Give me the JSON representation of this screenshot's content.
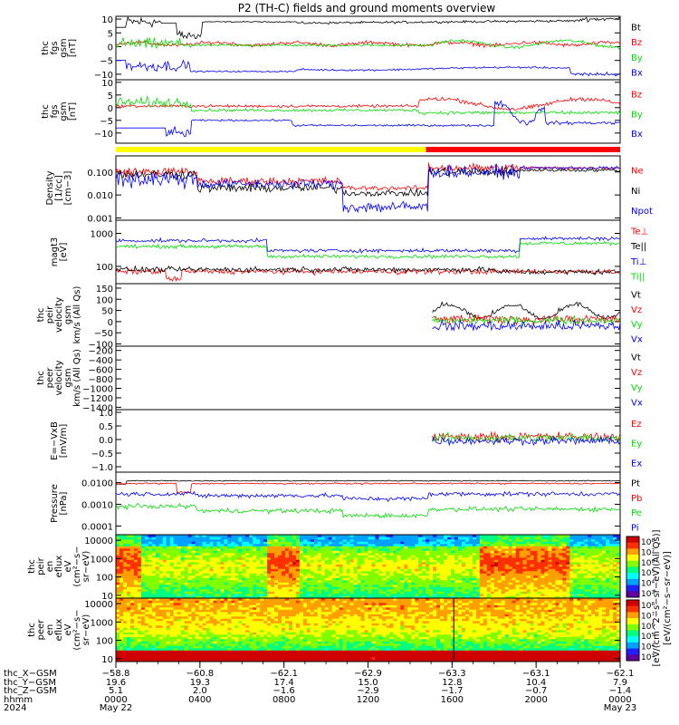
{
  "title": "P2 (TH-C) fields and ground moments overview",
  "colors": {
    "black": "#000000",
    "red": "#ff0000",
    "green": "#00dd00",
    "blue": "#0000ff",
    "yellow": "#ffff00"
  },
  "chart_data": [
    {
      "type": "line",
      "id": "fgs_gsm",
      "ylabel": [
        "thc",
        "fgs",
        "gsm",
        "[nT]"
      ],
      "ylim": [
        -12,
        11
      ],
      "yticks": [
        {
          "v": 10,
          "l": "10"
        },
        {
          "v": 5,
          "l": "5"
        },
        {
          "v": 0,
          "l": "0"
        },
        {
          "v": -5,
          "l": "−5"
        },
        {
          "v": -10,
          "l": "−10"
        }
      ],
      "series": [
        {
          "name": "Bt",
          "color": "black"
        },
        {
          "name": "Bz",
          "color": "red"
        },
        {
          "name": "By",
          "color": "green"
        },
        {
          "name": "Bx",
          "color": "blue"
        }
      ]
    },
    {
      "type": "line",
      "id": "fgs_dsl",
      "ylabel": [
        "thc",
        "fgs",
        "gsm",
        "[nT]"
      ],
      "ylim": [
        -14,
        11
      ],
      "yticks": [
        {
          "v": 10,
          "l": "10"
        },
        {
          "v": 5,
          "l": "5"
        },
        {
          "v": 0,
          "l": "0"
        },
        {
          "v": -5,
          "l": "−5"
        },
        {
          "v": -10,
          "l": "−10"
        }
      ],
      "series": [
        {
          "name": "Bz",
          "color": "red"
        },
        {
          "name": "By",
          "color": "green"
        },
        {
          "name": "Bx",
          "color": "blue"
        }
      ]
    },
    {
      "type": "bar",
      "id": "region_bar",
      "segments": [
        {
          "from": 0,
          "to": 0.615,
          "color": "yellow"
        },
        {
          "from": 0.615,
          "to": 1,
          "color": "red"
        }
      ]
    },
    {
      "type": "line",
      "id": "density",
      "scale": "log",
      "ylabel": [
        "Density",
        "[1/cc]",
        "[cm−3]"
      ],
      "ylim": [
        0.0008,
        0.5
      ],
      "yticks": [
        {
          "v": 0.1,
          "l": "0.100"
        },
        {
          "v": 0.01,
          "l": "0.010"
        },
        {
          "v": 0.001,
          "l": "0.001"
        }
      ],
      "series": [
        {
          "name": "Ne",
          "color": "red"
        },
        {
          "name": "Ni",
          "color": "black"
        },
        {
          "name": "Npot",
          "color": "blue"
        }
      ]
    },
    {
      "type": "line",
      "id": "temp",
      "scale": "log",
      "ylabel": [
        "magt3",
        "[eV]"
      ],
      "ylim": [
        30,
        2500
      ],
      "yticks": [
        {
          "v": 1000,
          "l": "1000"
        },
        {
          "v": 100,
          "l": "100"
        }
      ],
      "series": [
        {
          "name": "Te⊥",
          "color": "red"
        },
        {
          "name": "Te||",
          "color": "black"
        },
        {
          "name": "Ti⊥",
          "color": "blue"
        },
        {
          "name": "Ti||",
          "color": "green"
        }
      ]
    },
    {
      "type": "line",
      "id": "peir_vel",
      "ylabel": [
        "thc",
        "peir",
        "velocity",
        "gsm",
        "km/s (All Qs)"
      ],
      "ylim": [
        -110,
        170
      ],
      "yticks": [
        {
          "v": 150,
          "l": "150"
        },
        {
          "v": 100,
          "l": "100"
        },
        {
          "v": 50,
          "l": "50"
        },
        {
          "v": 0,
          "l": "0"
        },
        {
          "v": -50,
          "l": "−50"
        },
        {
          "v": -100,
          "l": "−100"
        }
      ],
      "series": [
        {
          "name": "Vt",
          "color": "black"
        },
        {
          "name": "Vz",
          "color": "red"
        },
        {
          "name": "Vy",
          "color": "green"
        },
        {
          "name": "Vx",
          "color": "blue"
        }
      ]
    },
    {
      "type": "line",
      "id": "peer_vel",
      "ylabel": [
        "thc",
        "peer",
        "velocity",
        "gsm",
        "km/s (All Qs)"
      ],
      "ylim": [
        -1450,
        -110
      ],
      "yticks": [
        {
          "v": -200,
          "l": "−200"
        },
        {
          "v": -400,
          "l": "−400"
        },
        {
          "v": -600,
          "l": "−600"
        },
        {
          "v": -800,
          "l": "−800"
        },
        {
          "v": -1000,
          "l": "−1000"
        },
        {
          "v": -1200,
          "l": "−1200"
        },
        {
          "v": -1400,
          "l": "−1400"
        }
      ],
      "series": [
        {
          "name": "Vt",
          "color": "black"
        },
        {
          "name": "Vz",
          "color": "red"
        },
        {
          "name": "Vy",
          "color": "green"
        },
        {
          "name": "Vx",
          "color": "blue"
        }
      ]
    },
    {
      "type": "line",
      "id": "efield",
      "ylabel": [
        "E=−VxB",
        "[mV/m]"
      ],
      "ylim": [
        -1.2,
        1.1
      ],
      "yticks": [
        {
          "v": 1.0,
          "l": "1.0"
        },
        {
          "v": 0.5,
          "l": "0.5"
        },
        {
          "v": 0.0,
          "l": "0.0"
        },
        {
          "v": -0.5,
          "l": "−0.5"
        },
        {
          "v": -1.0,
          "l": "−1.0"
        }
      ],
      "series": [
        {
          "name": "Ez",
          "color": "red"
        },
        {
          "name": "Ey",
          "color": "green"
        },
        {
          "name": "Ex",
          "color": "blue"
        }
      ]
    },
    {
      "type": "line",
      "id": "pressure",
      "scale": "log",
      "ylabel": [
        "Pressure",
        "[nPa]"
      ],
      "ylim": [
        4e-05,
        0.03
      ],
      "yticks": [
        {
          "v": 0.01,
          "l": "0.0100"
        },
        {
          "v": 0.001,
          "l": "0.0010"
        },
        {
          "v": 0.0001,
          "l": "0.0001"
        }
      ],
      "series": [
        {
          "name": "Pt",
          "color": "black"
        },
        {
          "name": "Pb",
          "color": "red"
        },
        {
          "name": "Pe",
          "color": "green"
        },
        {
          "name": "Pi",
          "color": "blue"
        }
      ]
    },
    {
      "type": "heatmap",
      "id": "peir_spec",
      "scale": "log",
      "ylabel": [
        "thc",
        "peir",
        "en",
        "eflux",
        "eV",
        "(cm²−s−",
        "sr−eV)"
      ],
      "ylim": [
        7,
        20000
      ],
      "yticks": [
        {
          "v": 10000,
          "l": "10000"
        },
        {
          "v": 1000,
          "l": "1000"
        },
        {
          "v": 100,
          "l": "100"
        },
        {
          "v": 10,
          "l": "10"
        }
      ]
    },
    {
      "type": "heatmap",
      "id": "peer_spec",
      "scale": "log",
      "ylabel": [
        "thc",
        "peer",
        "en",
        "eflux",
        "eV",
        "(cm²−s−",
        "sr−eV)"
      ],
      "ylim": [
        7,
        20000
      ],
      "yticks": [
        {
          "v": 10000,
          "l": "10000"
        },
        {
          "v": 1000,
          "l": "1000"
        },
        {
          "v": 100,
          "l": "100"
        },
        {
          "v": 10,
          "l": "10"
        }
      ]
    }
  ],
  "colorbar": {
    "label": "[eV/(cm²−s−sr−eV)]",
    "label2": "[eV/(cm^2−s−sr−eV)(All Qs)]",
    "ticks_top": [
      "10⁸",
      "10⁷",
      "10⁶",
      "10⁵",
      "10⁴",
      "10³"
    ],
    "ticks_bottom": [
      "10⁸",
      "10⁷",
      "10⁶",
      "10⁵",
      "10⁴",
      "10³"
    ]
  },
  "x_axis": {
    "row_labels": [
      "thc_X−GSM",
      "thc_Y−GSM",
      "thc_Z−GSM",
      "hhmm",
      "2024"
    ],
    "ticks": [
      {
        "xgsm": "−58.8",
        "ygsm": "19.6",
        "zgsm": "5.1",
        "hhmm": "0000",
        "date": "May 22"
      },
      {
        "xgsm": "−60.8",
        "ygsm": "19.3",
        "zgsm": "2.0",
        "hhmm": "0400",
        "date": ""
      },
      {
        "xgsm": "−62.1",
        "ygsm": "17.4",
        "zgsm": "−1.6",
        "hhmm": "0800",
        "date": ""
      },
      {
        "xgsm": "−62.9",
        "ygsm": "15.0",
        "zgsm": "−2.9",
        "hhmm": "1200",
        "date": ""
      },
      {
        "xgsm": "−63.3",
        "ygsm": "12.8",
        "zgsm": "−1.7",
        "hhmm": "1600",
        "date": ""
      },
      {
        "xgsm": "−63.1",
        "ygsm": "10.4",
        "zgsm": "−0.7",
        "hhmm": "2000",
        "date": ""
      },
      {
        "xgsm": "−62.1",
        "ygsm": "7.9",
        "zgsm": "−1.4",
        "hhmm": "0000",
        "date": "May 23"
      }
    ]
  }
}
